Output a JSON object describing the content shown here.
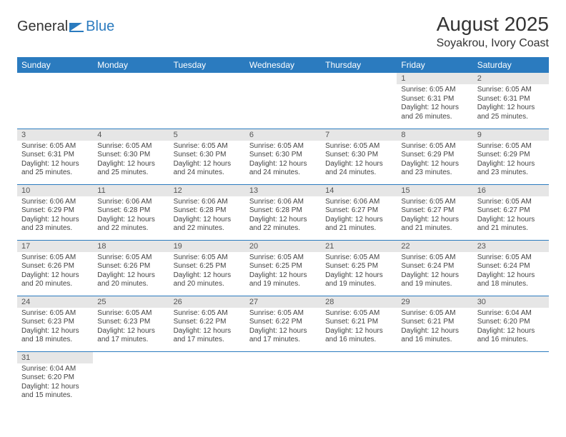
{
  "logo": {
    "text1": "General",
    "text2": "Blue"
  },
  "title": "August 2025",
  "location": "Soyakrou, Ivory Coast",
  "colors": {
    "header_bg": "#2b7bbf",
    "header_text": "#ffffff",
    "daynum_bg": "#e6e6e6",
    "cell_border": "#2b7bbf",
    "page_bg": "#ffffff",
    "text": "#444444"
  },
  "weekdays": [
    "Sunday",
    "Monday",
    "Tuesday",
    "Wednesday",
    "Thursday",
    "Friday",
    "Saturday"
  ],
  "weeks": [
    [
      null,
      null,
      null,
      null,
      null,
      {
        "n": "1",
        "sunrise": "Sunrise: 6:05 AM",
        "sunset": "Sunset: 6:31 PM",
        "day1": "Daylight: 12 hours",
        "day2": "and 26 minutes."
      },
      {
        "n": "2",
        "sunrise": "Sunrise: 6:05 AM",
        "sunset": "Sunset: 6:31 PM",
        "day1": "Daylight: 12 hours",
        "day2": "and 25 minutes."
      }
    ],
    [
      {
        "n": "3",
        "sunrise": "Sunrise: 6:05 AM",
        "sunset": "Sunset: 6:31 PM",
        "day1": "Daylight: 12 hours",
        "day2": "and 25 minutes."
      },
      {
        "n": "4",
        "sunrise": "Sunrise: 6:05 AM",
        "sunset": "Sunset: 6:30 PM",
        "day1": "Daylight: 12 hours",
        "day2": "and 25 minutes."
      },
      {
        "n": "5",
        "sunrise": "Sunrise: 6:05 AM",
        "sunset": "Sunset: 6:30 PM",
        "day1": "Daylight: 12 hours",
        "day2": "and 24 minutes."
      },
      {
        "n": "6",
        "sunrise": "Sunrise: 6:05 AM",
        "sunset": "Sunset: 6:30 PM",
        "day1": "Daylight: 12 hours",
        "day2": "and 24 minutes."
      },
      {
        "n": "7",
        "sunrise": "Sunrise: 6:05 AM",
        "sunset": "Sunset: 6:30 PM",
        "day1": "Daylight: 12 hours",
        "day2": "and 24 minutes."
      },
      {
        "n": "8",
        "sunrise": "Sunrise: 6:05 AM",
        "sunset": "Sunset: 6:29 PM",
        "day1": "Daylight: 12 hours",
        "day2": "and 23 minutes."
      },
      {
        "n": "9",
        "sunrise": "Sunrise: 6:05 AM",
        "sunset": "Sunset: 6:29 PM",
        "day1": "Daylight: 12 hours",
        "day2": "and 23 minutes."
      }
    ],
    [
      {
        "n": "10",
        "sunrise": "Sunrise: 6:06 AM",
        "sunset": "Sunset: 6:29 PM",
        "day1": "Daylight: 12 hours",
        "day2": "and 23 minutes."
      },
      {
        "n": "11",
        "sunrise": "Sunrise: 6:06 AM",
        "sunset": "Sunset: 6:28 PM",
        "day1": "Daylight: 12 hours",
        "day2": "and 22 minutes."
      },
      {
        "n": "12",
        "sunrise": "Sunrise: 6:06 AM",
        "sunset": "Sunset: 6:28 PM",
        "day1": "Daylight: 12 hours",
        "day2": "and 22 minutes."
      },
      {
        "n": "13",
        "sunrise": "Sunrise: 6:06 AM",
        "sunset": "Sunset: 6:28 PM",
        "day1": "Daylight: 12 hours",
        "day2": "and 22 minutes."
      },
      {
        "n": "14",
        "sunrise": "Sunrise: 6:06 AM",
        "sunset": "Sunset: 6:27 PM",
        "day1": "Daylight: 12 hours",
        "day2": "and 21 minutes."
      },
      {
        "n": "15",
        "sunrise": "Sunrise: 6:05 AM",
        "sunset": "Sunset: 6:27 PM",
        "day1": "Daylight: 12 hours",
        "day2": "and 21 minutes."
      },
      {
        "n": "16",
        "sunrise": "Sunrise: 6:05 AM",
        "sunset": "Sunset: 6:27 PM",
        "day1": "Daylight: 12 hours",
        "day2": "and 21 minutes."
      }
    ],
    [
      {
        "n": "17",
        "sunrise": "Sunrise: 6:05 AM",
        "sunset": "Sunset: 6:26 PM",
        "day1": "Daylight: 12 hours",
        "day2": "and 20 minutes."
      },
      {
        "n": "18",
        "sunrise": "Sunrise: 6:05 AM",
        "sunset": "Sunset: 6:26 PM",
        "day1": "Daylight: 12 hours",
        "day2": "and 20 minutes."
      },
      {
        "n": "19",
        "sunrise": "Sunrise: 6:05 AM",
        "sunset": "Sunset: 6:25 PM",
        "day1": "Daylight: 12 hours",
        "day2": "and 20 minutes."
      },
      {
        "n": "20",
        "sunrise": "Sunrise: 6:05 AM",
        "sunset": "Sunset: 6:25 PM",
        "day1": "Daylight: 12 hours",
        "day2": "and 19 minutes."
      },
      {
        "n": "21",
        "sunrise": "Sunrise: 6:05 AM",
        "sunset": "Sunset: 6:25 PM",
        "day1": "Daylight: 12 hours",
        "day2": "and 19 minutes."
      },
      {
        "n": "22",
        "sunrise": "Sunrise: 6:05 AM",
        "sunset": "Sunset: 6:24 PM",
        "day1": "Daylight: 12 hours",
        "day2": "and 19 minutes."
      },
      {
        "n": "23",
        "sunrise": "Sunrise: 6:05 AM",
        "sunset": "Sunset: 6:24 PM",
        "day1": "Daylight: 12 hours",
        "day2": "and 18 minutes."
      }
    ],
    [
      {
        "n": "24",
        "sunrise": "Sunrise: 6:05 AM",
        "sunset": "Sunset: 6:23 PM",
        "day1": "Daylight: 12 hours",
        "day2": "and 18 minutes."
      },
      {
        "n": "25",
        "sunrise": "Sunrise: 6:05 AM",
        "sunset": "Sunset: 6:23 PM",
        "day1": "Daylight: 12 hours",
        "day2": "and 17 minutes."
      },
      {
        "n": "26",
        "sunrise": "Sunrise: 6:05 AM",
        "sunset": "Sunset: 6:22 PM",
        "day1": "Daylight: 12 hours",
        "day2": "and 17 minutes."
      },
      {
        "n": "27",
        "sunrise": "Sunrise: 6:05 AM",
        "sunset": "Sunset: 6:22 PM",
        "day1": "Daylight: 12 hours",
        "day2": "and 17 minutes."
      },
      {
        "n": "28",
        "sunrise": "Sunrise: 6:05 AM",
        "sunset": "Sunset: 6:21 PM",
        "day1": "Daylight: 12 hours",
        "day2": "and 16 minutes."
      },
      {
        "n": "29",
        "sunrise": "Sunrise: 6:05 AM",
        "sunset": "Sunset: 6:21 PM",
        "day1": "Daylight: 12 hours",
        "day2": "and 16 minutes."
      },
      {
        "n": "30",
        "sunrise": "Sunrise: 6:04 AM",
        "sunset": "Sunset: 6:20 PM",
        "day1": "Daylight: 12 hours",
        "day2": "and 16 minutes."
      }
    ],
    [
      {
        "n": "31",
        "sunrise": "Sunrise: 6:04 AM",
        "sunset": "Sunset: 6:20 PM",
        "day1": "Daylight: 12 hours",
        "day2": "and 15 minutes."
      },
      null,
      null,
      null,
      null,
      null,
      null
    ]
  ]
}
